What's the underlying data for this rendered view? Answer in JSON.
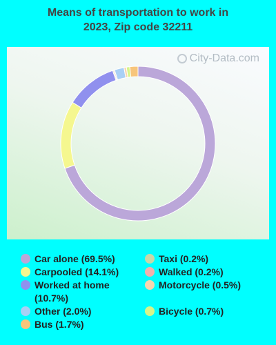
{
  "title_line1": "Means of transportation to work in",
  "title_line2": "2023, Zip code 32211",
  "watermark": "City-Data.com",
  "chart_data": {
    "type": "pie",
    "donut": true,
    "slices": [
      {
        "label": "Car alone",
        "value": 69.5,
        "display": "Car alone (69.5%)",
        "color": "#bba7d9"
      },
      {
        "label": "Carpooled",
        "value": 14.1,
        "display": "Carpooled (14.1%)",
        "color": "#f5f78f"
      },
      {
        "label": "Worked at home",
        "value": 10.7,
        "display": "Worked at home (10.7%)",
        "color": "#9090ee"
      },
      {
        "label": "Other",
        "value": 2.0,
        "display": "Other (2.0%)",
        "color": "#a9d0f5"
      },
      {
        "label": "Bus",
        "value": 1.7,
        "display": "Bus (1.7%)",
        "color": "#f7c57b"
      },
      {
        "label": "Taxi",
        "value": 0.2,
        "display": "Taxi (0.2%)",
        "color": "#c8d8a8"
      },
      {
        "label": "Walked",
        "value": 0.2,
        "display": "Walked (0.2%)",
        "color": "#f3b1ad"
      },
      {
        "label": "Motorcycle",
        "value": 0.5,
        "display": "Motorcycle (0.5%)",
        "color": "#f8d6b0"
      },
      {
        "label": "Bicycle",
        "value": 0.7,
        "display": "Bicycle (0.7%)",
        "color": "#d6f58a"
      }
    ],
    "draw_order": [
      "Car alone",
      "Carpooled",
      "Worked at home",
      "Taxi",
      "Walked",
      "Other",
      "Motorcycle",
      "Bicycle",
      "Bus"
    ],
    "legend_placement": "bottom"
  }
}
